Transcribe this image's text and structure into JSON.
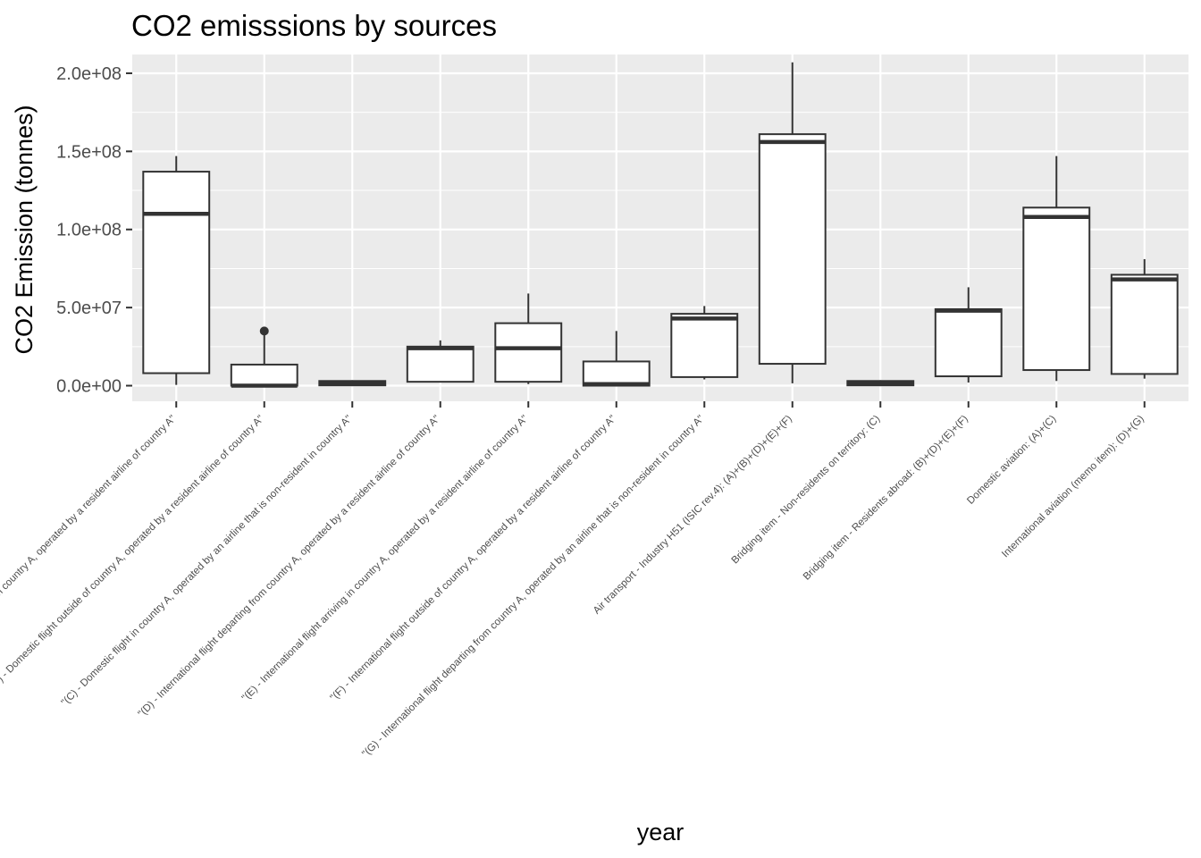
{
  "chart_data": {
    "type": "boxplot",
    "title": "CO2 emisssions by sources",
    "xlabel": "year",
    "ylabel": "CO2 Emission (tonnes)",
    "ylim": [
      -10000000,
      212000000
    ],
    "yticks": [
      0,
      50000000,
      100000000,
      150000000,
      200000000
    ],
    "ytick_labels": [
      "0.0e+00",
      "5.0e+07",
      "1.0e+08",
      "1.5e+08",
      "2.0e+08"
    ],
    "grid": true,
    "legend": "none",
    "colors": {
      "panel": "#ebebeb",
      "grid": "#ffffff",
      "box_fill": "#ffffff",
      "box_line": "#333333",
      "text": "#4d4d4d"
    },
    "categories": [
      "\"(A) - Domestic flight in country A, operated by a resident airline of country A\"",
      "\"(B) - Domestic flight outside of country A, operated by a resident airline of country A\"",
      "\"(C) - Domestic flight in country A, operated by an airline that is non-resident in country A\"",
      "\"(D) - International flight departing from country A, operated by a resident airline of country A\"",
      "\"(E) - International flight arriving in country A, operated by a resident airline of country A\"",
      "\"(F) - International flight outside of country A, operated by a resident airline of country A\"",
      "\"(G) - International flight departing from country A, operated by an airline that is non-resident in country A\"",
      "Air transport - Industry H51 (ISIC rev.4): (A)+(B)+(D)+(E)+(F)",
      "Bridging item - Non-residents on territory: (C)",
      "Bridging item - Residents abroad: (B)+(D)+(E)+(F)",
      "Domestic aviation: (A)+(C)",
      "International aviation (memo item): (D)+(G)"
    ],
    "boxes": [
      {
        "min": 500000,
        "q1": 8000000,
        "median": 110000000,
        "q3": 137000000,
        "max": 147000000,
        "outliers": []
      },
      {
        "min": 0,
        "q1": 0,
        "median": 0,
        "q3": 13500000,
        "max": 33000000,
        "outliers": [
          35000000
        ]
      },
      {
        "min": 0,
        "q1": 200000,
        "median": 1500000,
        "q3": 3000000,
        "max": 3500000,
        "outliers": []
      },
      {
        "min": 2500000,
        "q1": 2500000,
        "median": 24000000,
        "q3": 25000000,
        "max": 29000000,
        "outliers": []
      },
      {
        "min": 1000000,
        "q1": 2500000,
        "median": 24000000,
        "q3": 40000000,
        "max": 59000000,
        "outliers": []
      },
      {
        "min": 0,
        "q1": 0,
        "median": 1000000,
        "q3": 15500000,
        "max": 35000000,
        "outliers": []
      },
      {
        "min": 4000000,
        "q1": 5500000,
        "median": 43000000,
        "q3": 46000000,
        "max": 51000000,
        "outliers": []
      },
      {
        "min": 1500000,
        "q1": 14000000,
        "median": 156000000,
        "q3": 161000000,
        "max": 207000000,
        "outliers": []
      },
      {
        "min": 0,
        "q1": 200000,
        "median": 1500000,
        "q3": 3000000,
        "max": 3500000,
        "outliers": []
      },
      {
        "min": 2000000,
        "q1": 6000000,
        "median": 48000000,
        "q3": 49000000,
        "max": 63000000,
        "outliers": []
      },
      {
        "min": 3000000,
        "q1": 10000000,
        "median": 108000000,
        "q3": 114000000,
        "max": 147000000,
        "outliers": []
      },
      {
        "min": 4500000,
        "q1": 7500000,
        "median": 68000000,
        "q3": 71000000,
        "max": 81000000,
        "outliers": []
      }
    ]
  }
}
